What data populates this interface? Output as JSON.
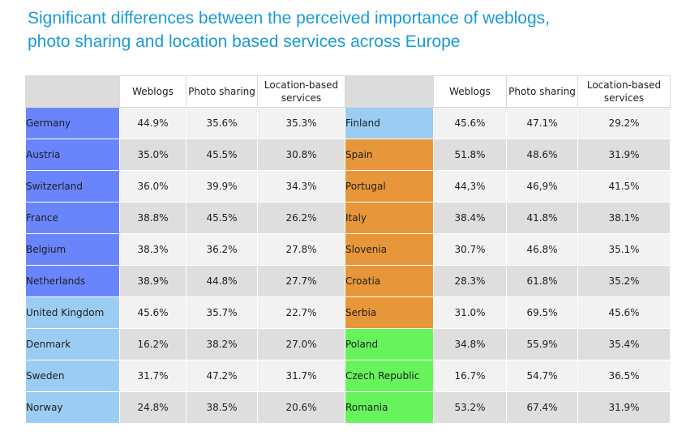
{
  "title": {
    "line1": "Significant differences between the perceived importance of weblogs,",
    "line2": "photo sharing and location based services across Europe"
  },
  "colors": {
    "title": "#1a9ad6",
    "group_blue": "#6a85fb",
    "group_light_blue": "#9bcdf2",
    "group_orange": "#e8963a",
    "group_green": "#66f35c"
  },
  "headers": {
    "weblogs": "Weblogs",
    "photo_sharing": "Photo sharing",
    "location_line1": "Location-based",
    "location_line2": "services"
  },
  "rows": [
    {
      "left": {
        "country": "Germany",
        "weblogs": "44.9%",
        "photo": "35.6%",
        "location": "35.3%",
        "group": "blue"
      },
      "right": {
        "country": "Finland",
        "weblogs": "45.6%",
        "photo": "47.1%",
        "location": "29.2%",
        "group": "light-blue"
      }
    },
    {
      "left": {
        "country": "Austria",
        "weblogs": "35.0%",
        "photo": "45.5%",
        "location": "30.8%",
        "group": "blue"
      },
      "right": {
        "country": "Spain",
        "weblogs": "51.8%",
        "photo": "48.6%",
        "location": "31.9%",
        "group": "orange"
      }
    },
    {
      "left": {
        "country": "Switzerland",
        "weblogs": "36.0%",
        "photo": "39.9%",
        "location": "34.3%",
        "group": "blue"
      },
      "right": {
        "country": "Portugal",
        "weblogs": "44,3%",
        "photo": "46,9%",
        "location": "41.5%",
        "group": "orange"
      }
    },
    {
      "left": {
        "country": "France",
        "weblogs": "38.8%",
        "photo": "45.5%",
        "location": "26.2%",
        "group": "blue"
      },
      "right": {
        "country": "Italy",
        "weblogs": "38.4%",
        "photo": "41.8%",
        "location": "38.1%",
        "group": "orange"
      }
    },
    {
      "left": {
        "country": "Belgium",
        "weblogs": "38.3%",
        "photo": "36.2%",
        "location": "27.8%",
        "group": "blue"
      },
      "right": {
        "country": "Slovenia",
        "weblogs": "30.7%",
        "photo": "46.8%",
        "location": "35.1%",
        "group": "orange"
      }
    },
    {
      "left": {
        "country": "Netherlands",
        "weblogs": "38.9%",
        "photo": "44.8%",
        "location": "27.7%",
        "group": "blue"
      },
      "right": {
        "country": "Croatia",
        "weblogs": "28.3%",
        "photo": "61.8%",
        "location": "35.2%",
        "group": "orange"
      }
    },
    {
      "left": {
        "country": "United Kingdom",
        "weblogs": "45.6%",
        "photo": "35.7%",
        "location": "22.7%",
        "group": "light-blue"
      },
      "right": {
        "country": "Serbia",
        "weblogs": "31.0%",
        "photo": "69.5%",
        "location": "45.6%",
        "group": "orange"
      }
    },
    {
      "left": {
        "country": "Denmark",
        "weblogs": "16.2%",
        "photo": "38.2%",
        "location": "27.0%",
        "group": "light-blue"
      },
      "right": {
        "country": "Poland",
        "weblogs": "34.8%",
        "photo": "55.9%",
        "location": "35.4%",
        "group": "green"
      }
    },
    {
      "left": {
        "country": "Sweden",
        "weblogs": "31.7%",
        "photo": "47.2%",
        "location": "31.7%",
        "group": "light-blue"
      },
      "right": {
        "country": "Czech Republic",
        "weblogs": "16.7%",
        "photo": "54.7%",
        "location": "36.5%",
        "group": "green"
      }
    },
    {
      "left": {
        "country": "Norway",
        "weblogs": "24.8%",
        "photo": "38.5%",
        "location": "20.6%",
        "group": "light-blue"
      },
      "right": {
        "country": "Romania",
        "weblogs": "53.2%",
        "photo": "67.4%",
        "location": "31.9%",
        "group": "green"
      }
    }
  ]
}
